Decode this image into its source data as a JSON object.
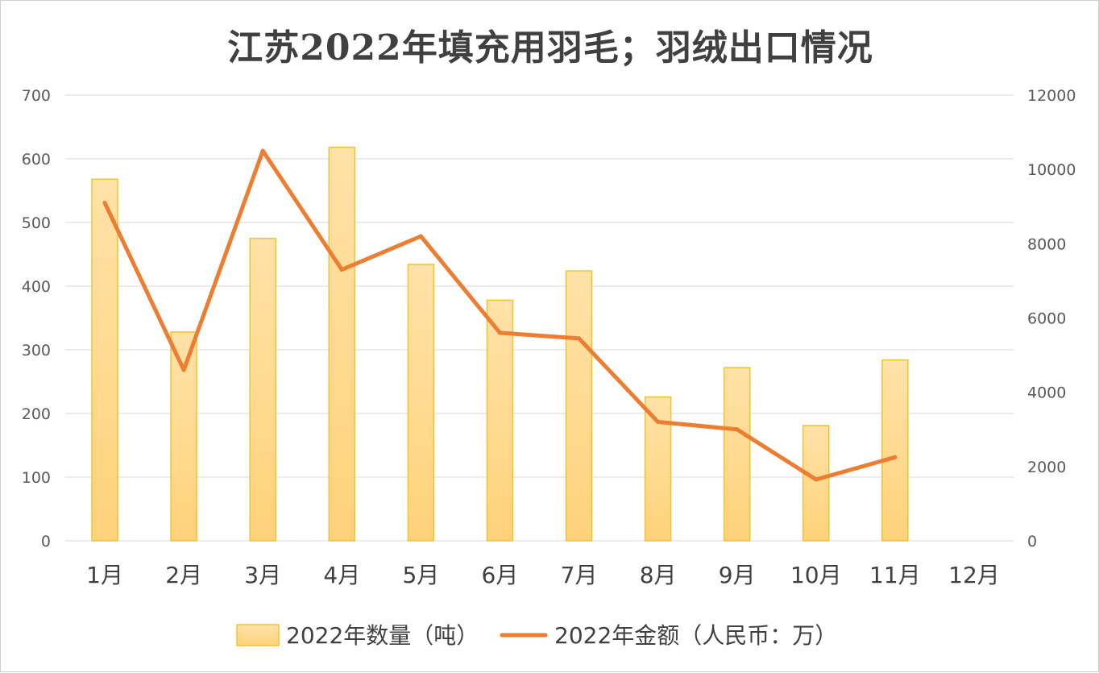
{
  "chart_data": {
    "type": "bar",
    "title": "江苏2022年填充用羽毛；羽绒出口情况",
    "categories": [
      "1月",
      "2月",
      "3月",
      "4月",
      "5月",
      "6月",
      "7月",
      "8月",
      "9月",
      "10月",
      "11月",
      "12月"
    ],
    "series": [
      {
        "name": "2022年数量（吨）",
        "type": "bar",
        "axis": "left",
        "color": "#ffd27a",
        "values": [
          568,
          328,
          475,
          618,
          434,
          378,
          424,
          226,
          272,
          181,
          284,
          null
        ]
      },
      {
        "name": "2022年金额（人民币：万）",
        "type": "line",
        "axis": "right",
        "color": "#ed7d31",
        "values": [
          9100,
          4600,
          10500,
          7300,
          8200,
          5600,
          5450,
          3200,
          3000,
          1650,
          2250,
          null
        ]
      }
    ],
    "y_left": {
      "min": 0,
      "max": 700,
      "ticks": [
        "0",
        "100",
        "200",
        "300",
        "400",
        "500",
        "600",
        "700"
      ]
    },
    "y_right": {
      "min": 0,
      "max": 12000,
      "ticks": [
        "0",
        "2000",
        "4000",
        "6000",
        "8000",
        "10000",
        "12000"
      ]
    },
    "grid": true,
    "legend_position": "bottom"
  }
}
